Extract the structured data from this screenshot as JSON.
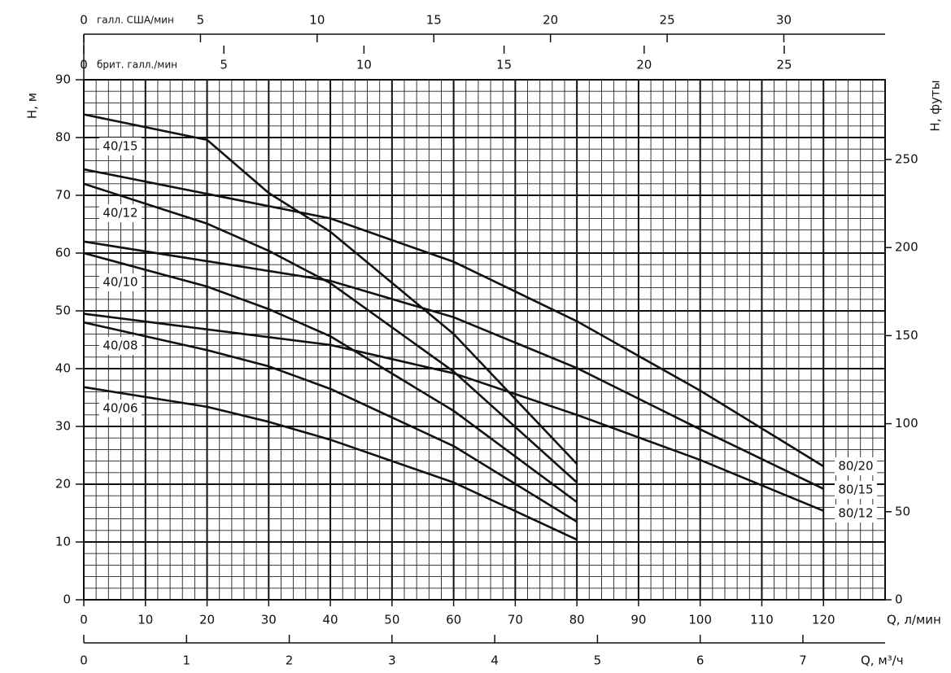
{
  "chart_data": {
    "type": "line",
    "xlabel": "Q, л/мин",
    "ylabel": "H, м",
    "y2label": "H, футы",
    "xlim": [
      0,
      130
    ],
    "xticks": [
      0,
      10,
      20,
      30,
      40,
      50,
      60,
      70,
      80,
      90,
      100,
      110,
      120
    ],
    "ylim": [
      0,
      90
    ],
    "yticks": [
      0,
      10,
      20,
      30,
      40,
      50,
      60,
      70,
      80,
      90
    ],
    "y2lim": [
      0,
      295.3
    ],
    "y2ticks": [
      0,
      50,
      100,
      150,
      200,
      250
    ],
    "grid": true,
    "xminorticks": [
      0,
      2,
      4,
      6,
      8,
      10,
      12,
      14,
      16,
      18,
      20,
      22,
      24,
      26,
      28,
      30,
      32,
      34,
      36,
      38,
      40,
      42,
      44,
      46,
      48,
      50,
      52,
      54,
      56,
      58,
      60,
      62,
      64,
      66,
      68,
      70,
      72,
      74,
      76,
      78,
      80,
      82,
      84,
      86,
      88,
      90,
      92,
      94,
      96,
      98,
      100,
      102,
      104,
      106,
      108,
      110,
      112,
      114,
      116,
      118,
      120,
      122,
      124,
      126,
      128,
      130
    ],
    "yminorticks": [
      0,
      2,
      4,
      6,
      8,
      10,
      12,
      14,
      16,
      18,
      20,
      22,
      24,
      26,
      28,
      30,
      32,
      34,
      36,
      38,
      40,
      42,
      44,
      46,
      48,
      50,
      52,
      54,
      56,
      58,
      60,
      62,
      64,
      66,
      68,
      70,
      72,
      74,
      76,
      78,
      80,
      82,
      84,
      86,
      88,
      90
    ],
    "secondary_axes": [
      {
        "label": "галл. США/мин",
        "position": "top",
        "lim": [
          0,
          34.34
        ],
        "ticks": [
          0,
          5,
          10,
          15,
          20,
          25,
          30
        ]
      },
      {
        "label": "брит. галл./мин",
        "position": "top",
        "lim": [
          0,
          28.6
        ],
        "ticks": [
          0,
          5,
          10,
          15,
          20,
          25
        ]
      },
      {
        "label": "Q, м³/ч",
        "position": "bottom",
        "lim": [
          0,
          7.8
        ],
        "ticks": [
          0,
          1,
          2,
          3,
          4,
          5,
          6,
          7
        ]
      }
    ],
    "series": [
      {
        "name": "40/15",
        "color": "#111111",
        "x": [
          0,
          20,
          30,
          40,
          60,
          80
        ],
        "values": [
          84,
          79.6,
          70.4,
          63.7,
          46,
          23.5
        ]
      },
      {
        "name": "40/12",
        "color": "#111111",
        "x": [
          0,
          20,
          30,
          40,
          60,
          80
        ],
        "values": [
          72,
          65.1,
          60.4,
          54.8,
          39.5,
          20.3
        ]
      },
      {
        "name": "40/10",
        "color": "#111111",
        "x": [
          0,
          20,
          30,
          40,
          60,
          80
        ],
        "values": [
          60,
          54.2,
          50.3,
          45.6,
          32.7,
          16.9
        ]
      },
      {
        "name": "40/08",
        "color": "#111111",
        "x": [
          0,
          20,
          30,
          40,
          60,
          80
        ],
        "values": [
          48,
          43.2,
          40.4,
          36.5,
          26.6,
          13.5
        ]
      },
      {
        "name": "40/06",
        "color": "#111111",
        "x": [
          0,
          20,
          30,
          40,
          60,
          80
        ],
        "values": [
          36.8,
          33.4,
          30.8,
          27.7,
          20.3,
          10.4
        ]
      },
      {
        "name": "80/20",
        "color": "#111111",
        "x": [
          0,
          40,
          60,
          80,
          100,
          120
        ],
        "values": [
          74.5,
          66,
          58.5,
          48.2,
          36.2,
          23.1
        ]
      },
      {
        "name": "80/15",
        "color": "#111111",
        "x": [
          0,
          40,
          60,
          80,
          100,
          120
        ],
        "values": [
          62,
          55.2,
          48.9,
          40.1,
          29.5,
          19.2
        ]
      },
      {
        "name": "80/12",
        "color": "#111111",
        "x": [
          0,
          40,
          60,
          80,
          100,
          120
        ],
        "values": [
          49.5,
          44.1,
          39.2,
          32,
          24.2,
          15.4
        ]
      }
    ]
  }
}
